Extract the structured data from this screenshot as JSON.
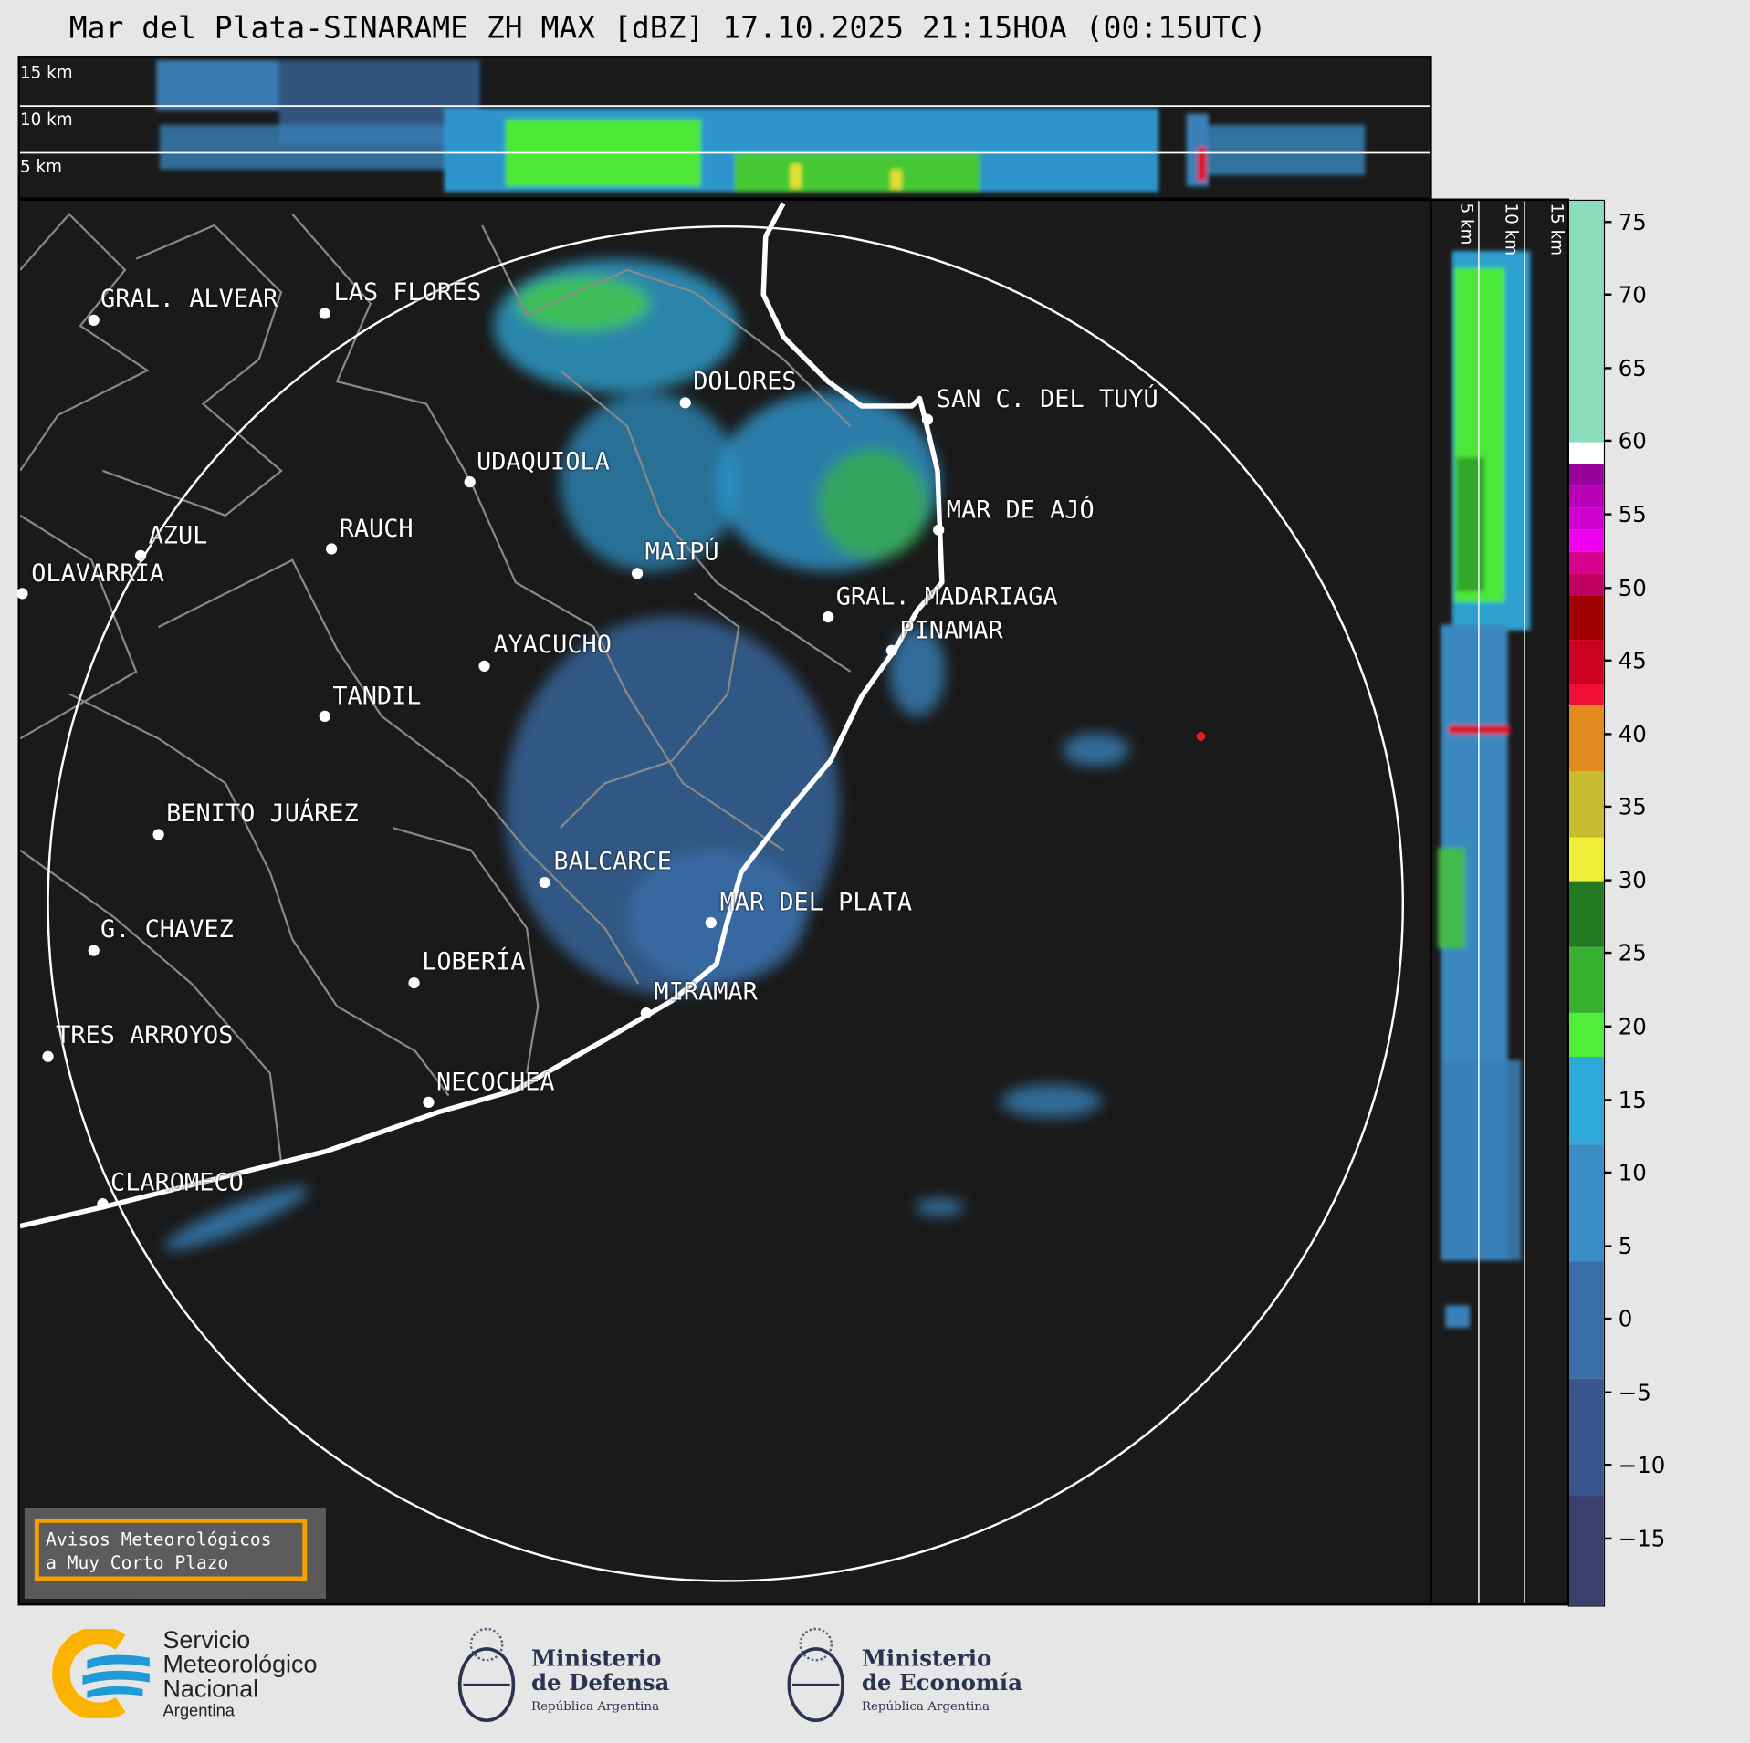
{
  "title": "Mar del Plata-SINARAME ZH MAX [dBZ] 17.10.2025 21:15HOA (00:15UTC)",
  "top_panel": {
    "height_labels": [
      "15 km",
      "10 km",
      "5 km"
    ]
  },
  "side_panel": {
    "height_labels": [
      "5 km",
      "10 km",
      "15 km"
    ]
  },
  "map": {
    "cities": [
      "GRAL. ALVEAR",
      "LAS FLORES",
      "DOLORES",
      "SAN C. DEL TUYÚ",
      "UDAQUIOLA",
      "MAR DE AJÓ",
      "AZUL",
      "RAUCH",
      "OLAVARRÍA",
      "MAIPÚ",
      "GRAL. MADARIAGA",
      "PINAMAR",
      "AYACUCHO",
      "TANDIL",
      "BENITO JUÁREZ",
      "BALCARCE",
      "MAR DEL PLATA",
      "G. CHAVEZ",
      "LOBERÍA",
      "MIRAMAR",
      "TRES ARROYOS",
      "NECOCHEA",
      "CLAROMECO"
    ],
    "background_color": "#1a1a1a"
  },
  "colorbar": {
    "unit": "dBZ",
    "range": [
      -19.5,
      76.5
    ],
    "ticks": [
      "75",
      "70",
      "65",
      "60",
      "55",
      "50",
      "45",
      "40",
      "35",
      "30",
      "25",
      "20",
      "15",
      "10",
      "5",
      "0",
      "−5",
      "−10",
      "−15"
    ],
    "bands": [
      {
        "from": 60,
        "to": 76.5,
        "color": "#8adcbd"
      },
      {
        "from": 58.5,
        "to": 60,
        "color": "#ffffff"
      },
      {
        "from": 57,
        "to": 58.5,
        "color": "#9a009a"
      },
      {
        "from": 55.5,
        "to": 57,
        "color": "#b800b8"
      },
      {
        "from": 54,
        "to": 55.5,
        "color": "#d000d0"
      },
      {
        "from": 52.5,
        "to": 54,
        "color": "#ee00ee"
      },
      {
        "from": 51,
        "to": 52.5,
        "color": "#d8008e"
      },
      {
        "from": 49.5,
        "to": 51,
        "color": "#c00060"
      },
      {
        "from": 46.5,
        "to": 49.5,
        "color": "#a00000"
      },
      {
        "from": 43.5,
        "to": 46.5,
        "color": "#cc0020"
      },
      {
        "from": 42,
        "to": 43.5,
        "color": "#f01035"
      },
      {
        "from": 37.5,
        "to": 42,
        "color": "#e08a20"
      },
      {
        "from": 33,
        "to": 37.5,
        "color": "#c8bc30"
      },
      {
        "from": 30,
        "to": 33,
        "color": "#eeee38"
      },
      {
        "from": 25.5,
        "to": 30,
        "color": "#237a22"
      },
      {
        "from": 21,
        "to": 25.5,
        "color": "#38b030"
      },
      {
        "from": 18,
        "to": 21,
        "color": "#50ee38"
      },
      {
        "from": 12,
        "to": 18,
        "color": "#2ea8d8"
      },
      {
        "from": 4,
        "to": 12,
        "color": "#3a8cc4"
      },
      {
        "from": -4,
        "to": 4,
        "color": "#3a6ea8"
      },
      {
        "from": -12,
        "to": -4,
        "color": "#3b5590"
      },
      {
        "from": -19.5,
        "to": -12,
        "color": "#3a3f6e"
      }
    ]
  },
  "avisos": {
    "line1": "Avisos Meteorológicos",
    "line2": "a Muy Corto Plazo"
  },
  "footer": {
    "smn": {
      "line1": "Servicio",
      "line2": "Meteorológico",
      "line3": "Nacional",
      "line4": "Argentina"
    },
    "defensa": {
      "line1": "Ministerio",
      "line2": "de Defensa",
      "line3": "República Argentina"
    },
    "economia": {
      "line1": "Ministerio",
      "line2": "de Economía",
      "line3": "República Argentina"
    }
  }
}
